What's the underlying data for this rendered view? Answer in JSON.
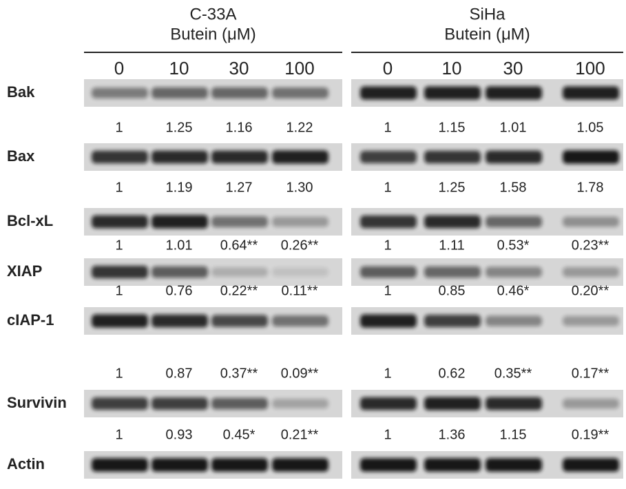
{
  "proteins": [
    "Bak",
    "Bax",
    "Bcl-xL",
    "XIAP",
    "cIAP-1",
    "Survivin",
    "Actin"
  ],
  "panels": [
    {
      "cell_line": "C-33A",
      "treatment": "Butein (μM)",
      "doses": [
        "0",
        "10",
        "30",
        "100"
      ],
      "quantification": [
        [
          "1",
          "1.25",
          "1.16",
          "1.22"
        ],
        [
          "1",
          "1.19",
          "1.27",
          "1.30"
        ],
        [
          "1",
          "1.01",
          "0.64**",
          "0.26**"
        ],
        [
          "1",
          "0.76",
          "0.22**",
          "0.11**"
        ],
        [
          "1",
          "0.87",
          "0.37**",
          "0.09**"
        ],
        [
          "1",
          "0.93",
          "0.45*",
          "0.21**"
        ]
      ]
    },
    {
      "cell_line": "SiHa",
      "treatment": "Butein (μM)",
      "doses": [
        "0",
        "10",
        "30",
        "100"
      ],
      "quantification": [
        [
          "1",
          "1.15",
          "1.01",
          "1.05"
        ],
        [
          "1",
          "1.25",
          "1.58",
          "1.78"
        ],
        [
          "1",
          "1.11",
          "0.53*",
          "0.23**"
        ],
        [
          "1",
          "0.85",
          "0.46*",
          "0.20**"
        ],
        [
          "1",
          "0.62",
          "0.35**",
          "0.17**"
        ],
        [
          "1",
          "1.36",
          "1.15",
          "0.19**"
        ]
      ]
    }
  ]
}
